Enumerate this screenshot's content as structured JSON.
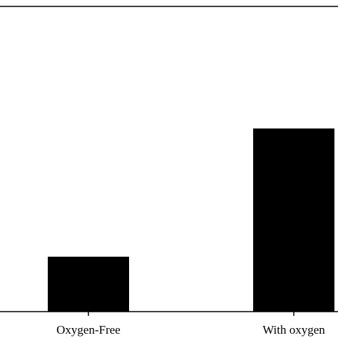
{
  "chart_data": {
    "type": "bar",
    "categories": [
      "Oxygen-Free",
      "With oxygen"
    ],
    "values": [
      0.18,
      0.6
    ],
    "ylim": [
      0,
      1
    ],
    "title": "",
    "xlabel": "",
    "ylabel": "",
    "grid": false,
    "legend": "none",
    "bar_color": "#000000",
    "axis_color": "#000000",
    "background": "#ffffff"
  }
}
